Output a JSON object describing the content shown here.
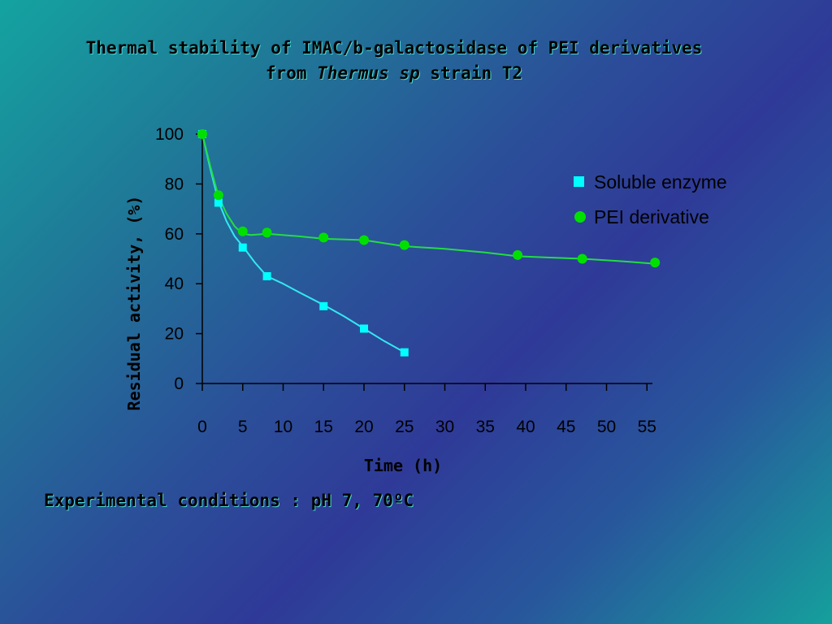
{
  "title": {
    "line1": "Thermal stability of IMAC/b-galactosidase of PEI derivatives",
    "line2_pre": "from ",
    "line2_italic": "Thermus sp",
    "line2_post": " strain T2"
  },
  "footer": "Experimental conditions : pH 7, 70ºC",
  "colors": {
    "soluble": "#00ffff",
    "soluble_line": "#33e8f0",
    "pei": "#00e000",
    "pei_line": "#22dd44",
    "axis": "#000000"
  },
  "chart_data": {
    "type": "scatter",
    "title": "Thermal stability of IMAC/b-galactosidase of PEI derivatives from Thermus sp strain T2",
    "xlabel": "Time (h)",
    "ylabel": "Residual activity, (%)",
    "xlim": [
      0,
      55
    ],
    "ylim": [
      0,
      100
    ],
    "xticks": [
      "0",
      "5",
      "10",
      "15",
      "20",
      "25",
      "30",
      "35",
      "40",
      "45",
      "50",
      "55"
    ],
    "yticks": [
      "0",
      "20",
      "40",
      "60",
      "80",
      "100"
    ],
    "legend_position": "top-right",
    "grid": false,
    "series": [
      {
        "name": "Soluble enzyme",
        "marker": "square",
        "x": [
          0,
          2,
          5,
          8,
          15,
          20,
          25
        ],
        "y": [
          100,
          72.5,
          54.5,
          43,
          31,
          22,
          12.5
        ],
        "curve": [
          [
            0,
            100
          ],
          [
            1,
            86
          ],
          [
            2,
            73
          ],
          [
            3,
            65
          ],
          [
            4,
            59
          ],
          [
            5,
            55
          ],
          [
            6.5,
            48.5
          ],
          [
            8,
            43
          ],
          [
            10,
            40
          ],
          [
            12,
            36.5
          ],
          [
            15,
            31.5
          ],
          [
            17.5,
            27
          ],
          [
            20,
            22
          ],
          [
            22.5,
            17
          ],
          [
            25,
            12.5
          ]
        ]
      },
      {
        "name": "PEI derivative",
        "marker": "circle",
        "x": [
          0,
          2,
          5,
          8,
          15,
          20,
          25,
          39,
          47,
          56
        ],
        "y": [
          100,
          75.5,
          61,
          60.5,
          58.5,
          57.5,
          55.5,
          51.5,
          50,
          48.5
        ],
        "curve": [
          [
            0,
            100
          ],
          [
            1,
            87
          ],
          [
            2,
            75
          ],
          [
            3,
            68
          ],
          [
            4,
            63
          ],
          [
            5,
            60
          ],
          [
            6,
            59.5
          ],
          [
            8,
            60
          ],
          [
            12,
            59
          ],
          [
            15,
            58
          ],
          [
            20,
            57.5
          ],
          [
            25,
            55
          ],
          [
            30,
            54
          ],
          [
            35,
            52.5
          ],
          [
            39,
            51
          ],
          [
            43,
            50.5
          ],
          [
            47,
            50
          ],
          [
            52,
            49
          ],
          [
            56,
            48
          ]
        ]
      }
    ]
  }
}
